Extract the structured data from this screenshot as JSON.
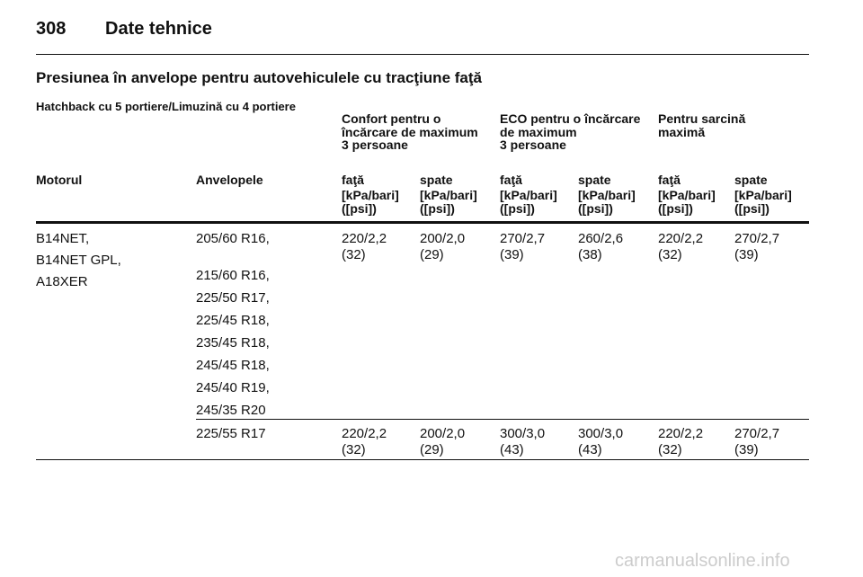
{
  "header": {
    "page_number": "308",
    "title": "Date tehnice"
  },
  "section_title": "Presiunea în anvelope pentru autovehiculele cu tracţiune faţă",
  "subtitle": "Hatchback cu 5 portiere/Limuzină cu 4 portiere",
  "table": {
    "group_headers": [
      [
        "Confort pentru o",
        "încărcare de maximum",
        "3 persoane"
      ],
      [
        "ECO pentru o încărcare",
        "de maximum",
        "3 persoane"
      ],
      [
        "Pentru sarcină",
        "maximă"
      ]
    ],
    "column_headers": [
      "Motorul",
      "Anvelopele",
      "faţă",
      "spate",
      "faţă",
      "spate",
      "faţă",
      "spate"
    ],
    "units": [
      [
        "[kPa/bari]",
        "([psi])"
      ],
      [
        "[kPa/bari]",
        "([psi])"
      ],
      [
        "[kPa/bari]",
        "([psi])"
      ],
      [
        "[kPa/bari]",
        "([psi])"
      ],
      [
        "[kPa/bari]",
        "([psi])"
      ],
      [
        "[kPa/bari]",
        "([psi])"
      ]
    ],
    "rows": [
      {
        "engines": [
          "B14NET,",
          "B14NET GPL,",
          "A18XER"
        ],
        "tyres": [
          "205/60 R16,",
          "215/60 R16,",
          "225/50 R17,",
          "225/45 R18,",
          "235/45 R18,",
          "245/45 R18,",
          "245/40 R19,",
          "245/35 R20"
        ],
        "values": [
          [
            "220/2,2",
            "(32)"
          ],
          [
            "200/2,0",
            "(29)"
          ],
          [
            "270/2,7",
            "(39)"
          ],
          [
            "260/2,6",
            "(38)"
          ],
          [
            "220/2,2",
            "(32)"
          ],
          [
            "270/2,7",
            "(39)"
          ]
        ]
      },
      {
        "engines": [],
        "tyres": [
          "225/55 R17"
        ],
        "values": [
          [
            "220/2,2",
            "(32)"
          ],
          [
            "200/2,0",
            "(29)"
          ],
          [
            "300/3,0",
            "(43)"
          ],
          [
            "300/3,0",
            "(43)"
          ],
          [
            "220/2,2",
            "(32)"
          ],
          [
            "270/2,7",
            "(39)"
          ]
        ]
      }
    ]
  },
  "watermark": "carmanualsonline.info"
}
